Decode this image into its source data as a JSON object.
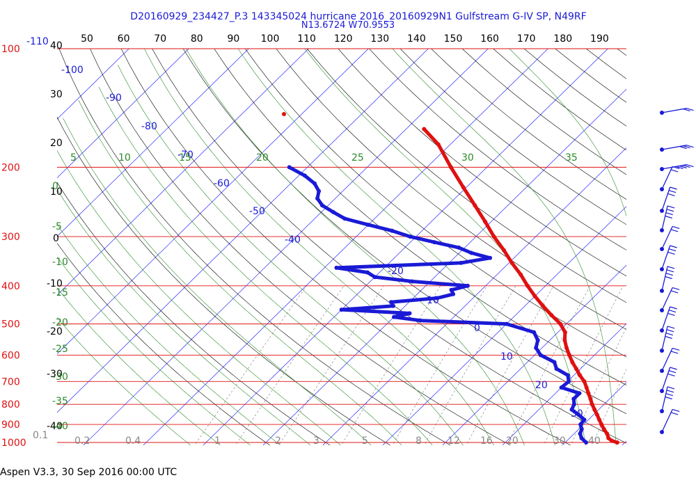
{
  "header": {
    "title_line1": "D20160929_234427_P.3 143345024 hurricane 2016_20160929N1 Gulfstream G-IV SP, N49RF",
    "title_line2": "N13.6724 W70.9553"
  },
  "footer": {
    "version": "Aspen V3.3, 30 Sep 2016  00:00 UTC"
  },
  "colors": {
    "accent_blue": "#1a1ad6",
    "accent_red": "#e01010",
    "mixing_green": "#2a8a2a"
  },
  "chart_data": {
    "type": "skew-t",
    "pressure_axis": {
      "scale": "log",
      "ylim": [
        1000,
        100
      ],
      "ticks": [
        100,
        200,
        300,
        400,
        500,
        600,
        700,
        800,
        900,
        1000
      ]
    },
    "temp_axis_C": {
      "xlim": [
        -40,
        40
      ],
      "ticks": [
        40,
        30,
        20,
        10,
        0,
        -10,
        -20,
        -30,
        -40
      ]
    },
    "top_scale": {
      "ticks": [
        50,
        60,
        70,
        80,
        90,
        100,
        110,
        120,
        130,
        140,
        150,
        160,
        170,
        180,
        190
      ]
    },
    "left_blue_label": "-110",
    "isotherm_labels": [
      -100,
      -90,
      -80,
      -70,
      -60,
      -50,
      -40,
      -20,
      -10,
      0,
      10,
      20,
      30
    ],
    "theta_e_labels": [
      5,
      10,
      15,
      20,
      25,
      30,
      35
    ],
    "mixing_ratio_labels": [
      "0.1",
      "0.2",
      "0.4",
      "1",
      "2",
      "3",
      "5",
      "8",
      "12",
      "16",
      "20",
      "30",
      "40"
    ],
    "left_green_labels": [
      0,
      -5,
      -10,
      -15,
      -20,
      -25,
      -30,
      -35,
      -40
    ],
    "temperature_profile": {
      "name": "Temperature",
      "p": [
        1000,
        990,
        975,
        950,
        925,
        900,
        875,
        850,
        825,
        800,
        775,
        750,
        725,
        700,
        675,
        650,
        625,
        600,
        575,
        550,
        525,
        500,
        475,
        450,
        425,
        400,
        375,
        350,
        325,
        300,
        275,
        250,
        225,
        200,
        175,
        160
      ],
      "t": [
        28.7,
        27.5,
        26.5,
        25.5,
        24.2,
        23.0,
        21.8,
        20.6,
        19.3,
        18.0,
        16.8,
        15.5,
        14.2,
        12.8,
        11.0,
        9.3,
        7.5,
        5.8,
        4.1,
        2.5,
        1.2,
        -1.0,
        -4.0,
        -7.0,
        -10.0,
        -13.0,
        -16.0,
        -19.5,
        -23.0,
        -27.0,
        -31.0,
        -35.5,
        -40.5,
        -46.0,
        -52.0,
        -57.0
      ]
    },
    "dewpoint_profile": {
      "name": "Dewpoint",
      "p": [
        1000,
        975,
        950,
        925,
        900,
        875,
        850,
        825,
        800,
        775,
        750,
        725,
        700,
        675,
        650,
        625,
        600,
        575,
        550,
        525,
        500,
        490,
        480,
        470,
        460,
        450,
        440,
        430,
        420,
        410,
        400,
        390,
        380,
        370,
        360,
        350,
        340,
        330,
        320,
        310,
        300,
        290,
        280,
        270,
        260,
        250,
        240,
        230,
        220,
        210,
        200
      ],
      "td": [
        23.5,
        22.0,
        21.0,
        20.5,
        19.5,
        19.3,
        17.5,
        15.5,
        15.0,
        14.0,
        14.0,
        10.0,
        10.2,
        9.0,
        6.0,
        4.5,
        1.0,
        -1.0,
        -2.0,
        -4.0,
        -10.0,
        -25.0,
        -30.0,
        -28.0,
        -40.0,
        -32.0,
        -33.0,
        -26.0,
        -24.0,
        -25.0,
        -23.0,
        -33.0,
        -40.0,
        -42.0,
        -48.0,
        -28.0,
        -24.0,
        -28.0,
        -31.0,
        -36.0,
        -41.0,
        -45.0,
        -50.0,
        -55.0,
        -58.0,
        -61.0,
        -63.0,
        -64.0,
        -66.0,
        -69.0,
        -73.0
      ]
    },
    "wind_barbs": {
      "count": 16
    }
  }
}
